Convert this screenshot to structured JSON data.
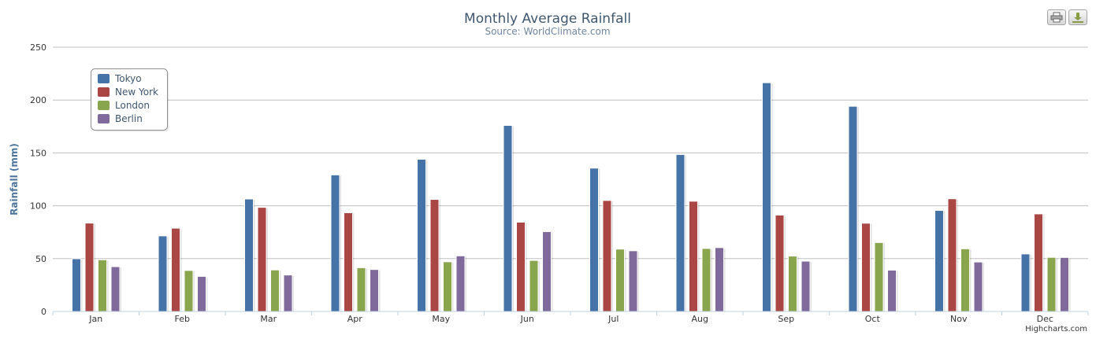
{
  "chart_data": {
    "type": "bar",
    "title": "Monthly Average Rainfall",
    "subtitle": "Source: WorldClimate.com",
    "xlabel": "",
    "ylabel": "Rainfall (mm)",
    "ylim": [
      0,
      250
    ],
    "yticks": [
      "0",
      "50",
      "100",
      "150",
      "200",
      "250"
    ],
    "categories": [
      "Jan",
      "Feb",
      "Mar",
      "Apr",
      "May",
      "Jun",
      "Jul",
      "Aug",
      "Sep",
      "Oct",
      "Nov",
      "Dec"
    ],
    "series": [
      {
        "name": "Tokyo",
        "color": "#4572a7",
        "values": [
          49.9,
          71.5,
          106.4,
          129.2,
          144.0,
          176.0,
          135.6,
          148.5,
          216.4,
          194.1,
          95.6,
          54.4
        ]
      },
      {
        "name": "New York",
        "color": "#aa4643",
        "values": [
          83.6,
          78.8,
          98.5,
          93.4,
          106.0,
          84.5,
          105.0,
          104.3,
          91.2,
          83.5,
          106.6,
          92.3
        ]
      },
      {
        "name": "London",
        "color": "#89a54e",
        "values": [
          48.9,
          38.8,
          39.3,
          41.4,
          47.0,
          48.3,
          59.0,
          59.6,
          52.4,
          65.2,
          59.3,
          51.2
        ]
      },
      {
        "name": "Berlin",
        "color": "#80699b",
        "values": [
          42.4,
          33.2,
          34.5,
          39.7,
          52.6,
          75.5,
          57.4,
          60.4,
          47.6,
          39.1,
          46.8,
          51.1
        ]
      }
    ],
    "grid": true,
    "legend_position": "top-left"
  },
  "credits": "Highcharts.com",
  "toolbar": {
    "print_icon": "printer-icon",
    "export_icon": "download-icon"
  }
}
